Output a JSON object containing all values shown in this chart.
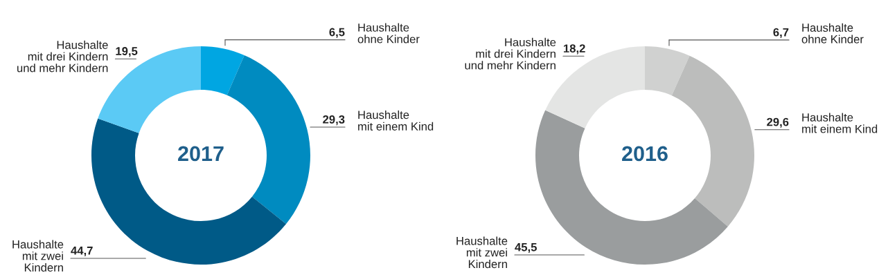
{
  "chart_data": [
    {
      "type": "donut",
      "title": "2017",
      "categories": [
        "Haushalte\nohne Kinder",
        "Haushalte\nmit einem Kind",
        "Haushalte\nmit zwei\nKindern",
        "Haushalte\nmit drei Kindern\nund mehr Kindern"
      ],
      "values": [
        6.5,
        29.3,
        44.7,
        19.5
      ],
      "value_labels": [
        "6,5",
        "29,3",
        "44,7",
        "19,5"
      ],
      "colors": [
        "#00a6e2",
        "#008bc0",
        "#005a87",
        "#5bcaf5"
      ]
    },
    {
      "type": "donut",
      "title": "2016",
      "categories": [
        "Haushalte\nohne Kinder",
        "Haushalte\nmit einem Kind",
        "Haushalte\nmit zwei\nKindern",
        "Haushalte\nmit drei Kindern\nund mehr Kindern"
      ],
      "values": [
        6.7,
        29.6,
        45.5,
        18.2
      ],
      "value_labels": [
        "6,7",
        "29,6",
        "45,5",
        "18,2"
      ],
      "colors": [
        "#d0d1d0",
        "#bcbdbc",
        "#9a9d9e",
        "#e4e5e4"
      ]
    }
  ]
}
